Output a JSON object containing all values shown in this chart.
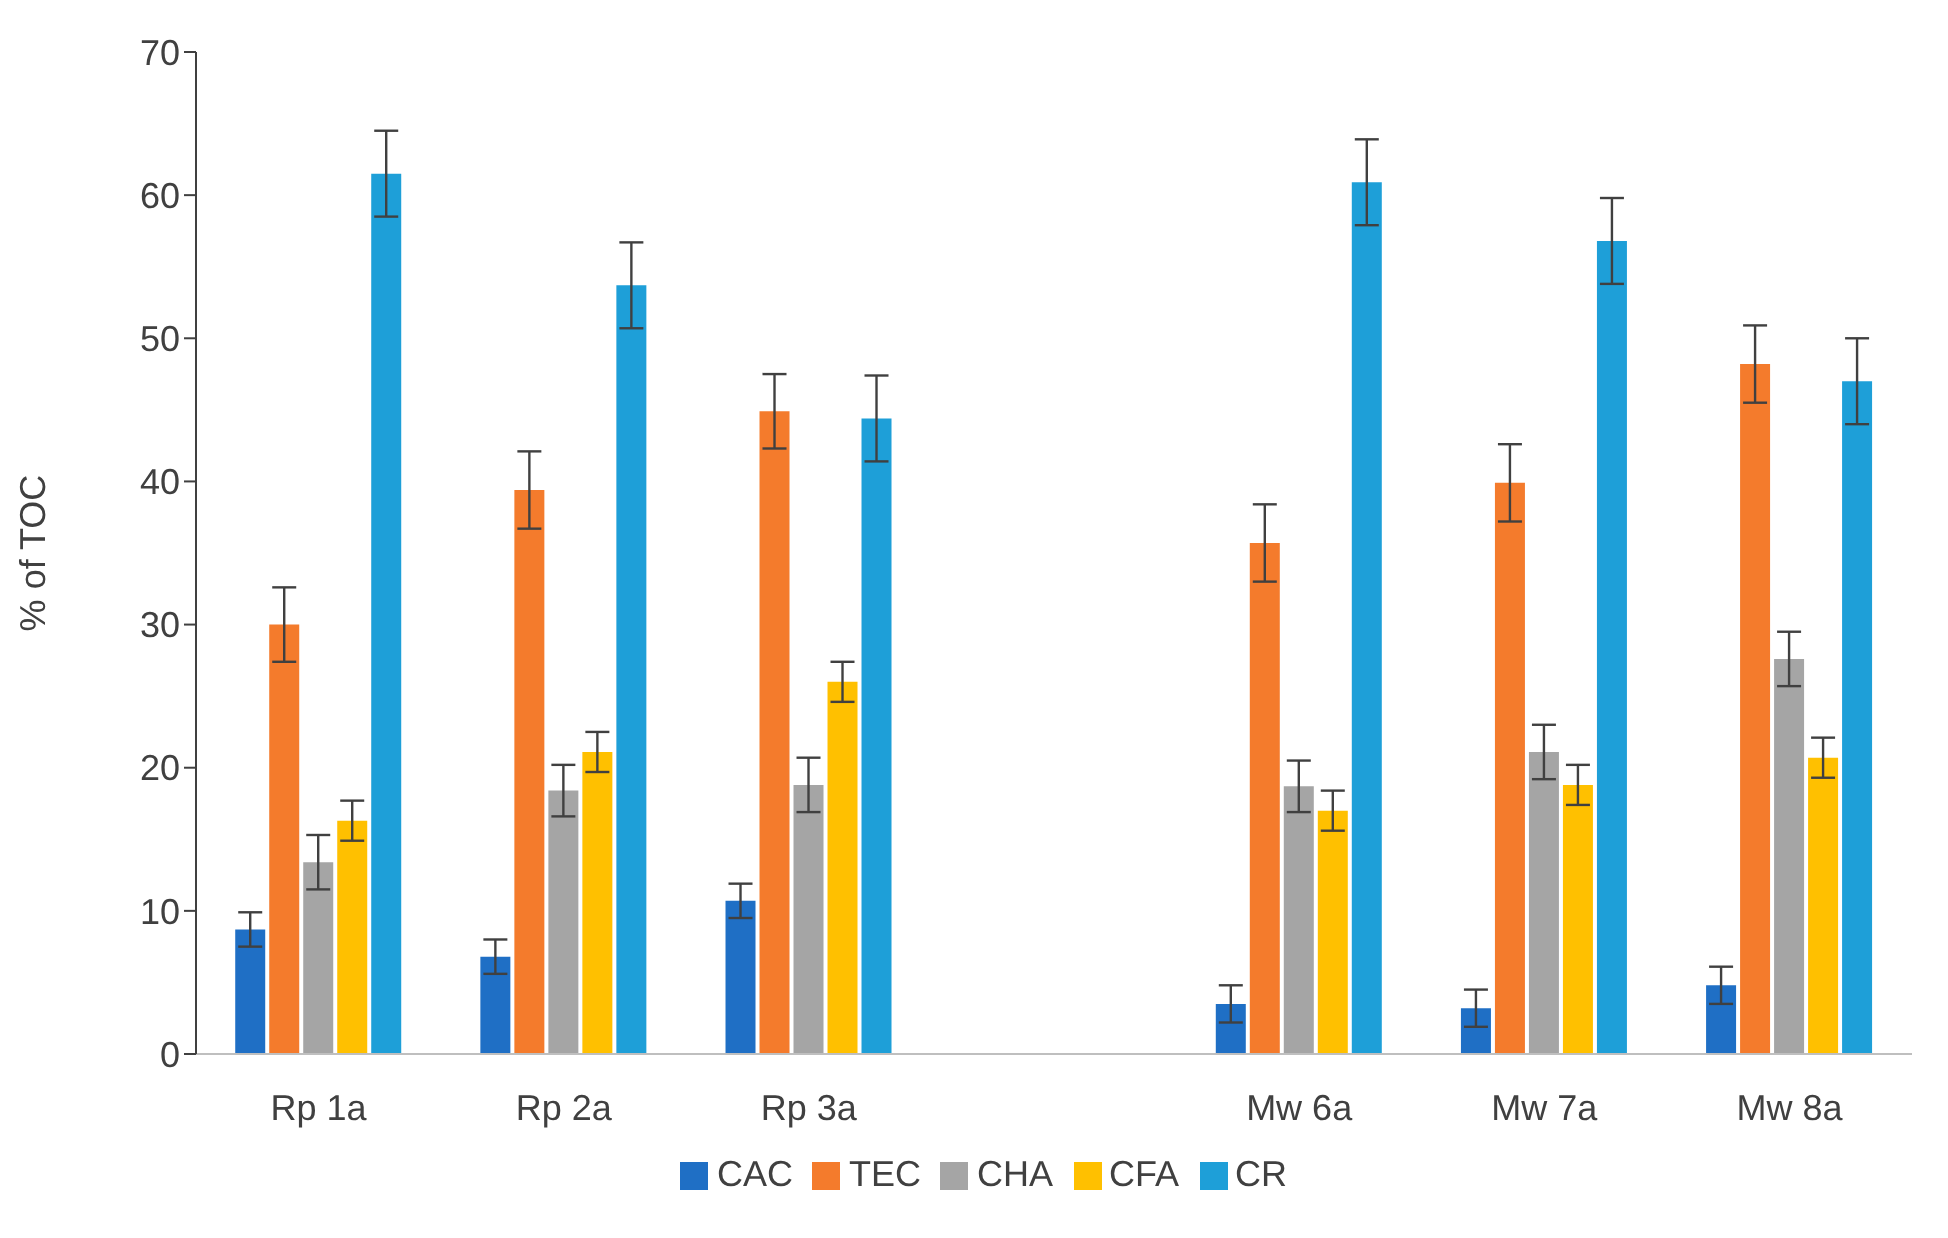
{
  "chart_data": {
    "type": "bar",
    "ylabel": "% of TOC",
    "categories": [
      "Rp 1a",
      "Rp 2a",
      "Rp 3a",
      null,
      "Mw 6a",
      "Mw 7a",
      "Mw 8a"
    ],
    "series": [
      {
        "name": "CAC",
        "color": "#1f6fc5",
        "values": [
          8.7,
          6.8,
          10.7,
          null,
          3.5,
          3.2,
          4.8
        ],
        "errors": [
          1.2,
          1.2,
          1.2,
          null,
          1.3,
          1.3,
          1.3
        ]
      },
      {
        "name": "TEC",
        "color": "#f47b2c",
        "values": [
          30.0,
          39.4,
          44.9,
          null,
          35.7,
          39.9,
          48.2
        ],
        "errors": [
          2.6,
          2.7,
          2.6,
          null,
          2.7,
          2.7,
          2.7
        ]
      },
      {
        "name": "CHA",
        "color": "#a5a5a5",
        "values": [
          13.4,
          18.4,
          18.8,
          null,
          18.7,
          21.1,
          27.6
        ],
        "errors": [
          1.9,
          1.8,
          1.9,
          null,
          1.8,
          1.9,
          1.9
        ]
      },
      {
        "name": "CFA",
        "color": "#ffc000",
        "values": [
          16.3,
          21.1,
          26.0,
          null,
          17.0,
          18.8,
          20.7
        ],
        "errors": [
          1.4,
          1.4,
          1.4,
          null,
          1.4,
          1.4,
          1.4
        ]
      },
      {
        "name": "CR",
        "color": "#1e9fd8",
        "values": [
          61.5,
          53.7,
          44.4,
          null,
          60.9,
          56.8,
          47.0
        ],
        "errors": [
          3.0,
          3.0,
          3.0,
          null,
          3.0,
          3.0,
          3.0
        ]
      }
    ],
    "ylim": [
      0,
      70
    ],
    "yticks": [
      0,
      10,
      20,
      30,
      40,
      50,
      60,
      70
    ],
    "grid": false,
    "legend": "bottom"
  }
}
